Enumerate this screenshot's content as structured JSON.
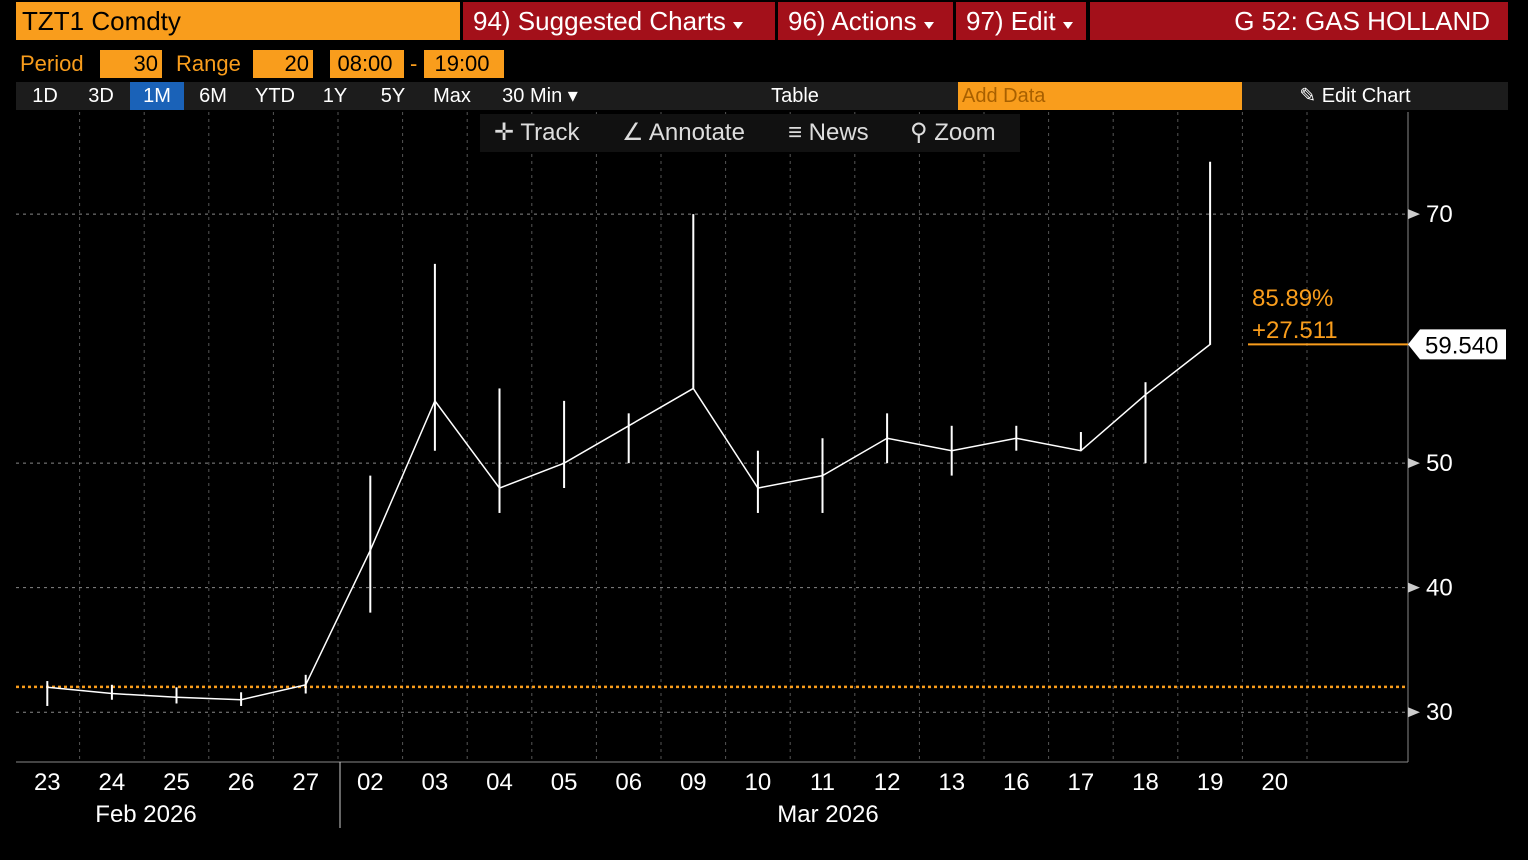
{
  "toolbar": {
    "ticker": "TZT1 Comdty",
    "menus": [
      "94) Suggested Charts",
      "96) Actions",
      "97) Edit"
    ],
    "security": "G 52: GAS HOLLAND",
    "period_label": "Period",
    "period": "30",
    "range_label": "Range",
    "range": "20",
    "start": "08:00",
    "separator": "-",
    "end": "19:00",
    "timeframes": [
      "1D",
      "3D",
      "1M",
      "6M",
      "YTD",
      "1Y",
      "5Y",
      "Max"
    ],
    "selected_timeframe": 2,
    "interval": "30 Min",
    "table": "Table",
    "add_data": "Add Data",
    "edit_chart": "Edit Chart",
    "tools": [
      "Track",
      "Annotate",
      "News",
      "Zoom"
    ]
  },
  "chart_data": {
    "type": "hilo",
    "categories": [
      "23",
      "24",
      "25",
      "26",
      "27",
      "02",
      "03",
      "04",
      "05",
      "06",
      "09",
      "10",
      "11",
      "12",
      "13",
      "16",
      "17",
      "18",
      "19",
      "20"
    ],
    "months": [
      "Feb 2026",
      "Mar 2026"
    ],
    "high": [
      32.5,
      32.2,
      32,
      31.6,
      33,
      49,
      66,
      56,
      55,
      54,
      70,
      51,
      52,
      54,
      53,
      53,
      52.5,
      56.5,
      74.2,
      null
    ],
    "low": [
      30.5,
      31,
      30.7,
      30.5,
      31.5,
      38,
      51,
      46,
      48,
      50,
      56,
      46,
      46,
      50,
      49,
      51,
      51,
      50,
      59.5,
      null
    ],
    "values": [
      32,
      31.5,
      31.2,
      31,
      32.2,
      43,
      55,
      48,
      50,
      53,
      56,
      48,
      49,
      52,
      51,
      52,
      51,
      55.5,
      59.54,
      null
    ],
    "color": "#ffffff",
    "ylim": [
      26,
      78.2
    ],
    "yticks": [
      30,
      40,
      50,
      70
    ],
    "grid": true,
    "reference_line": 32.03,
    "reference_color": "#f99d1c",
    "last_value": {
      "value": 59.54,
      "label": "59.540"
    },
    "change": {
      "value": 27.511,
      "label": "+27.511"
    },
    "change_pct": {
      "value": 85.89,
      "label": "85.89%"
    }
  }
}
